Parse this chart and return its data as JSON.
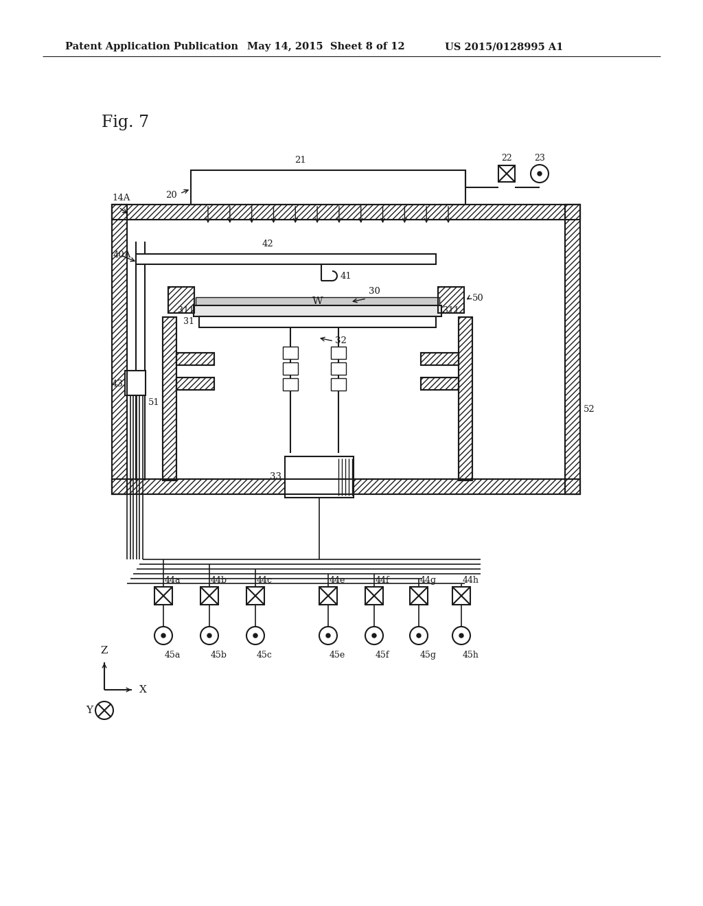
{
  "header_left": "Patent Application Publication",
  "header_mid": "May 14, 2015  Sheet 8 of 12",
  "header_right": "US 2015/0128995 A1",
  "fig_label": "Fig. 7",
  "bg": "#ffffff",
  "lc": "#1a1a1a"
}
